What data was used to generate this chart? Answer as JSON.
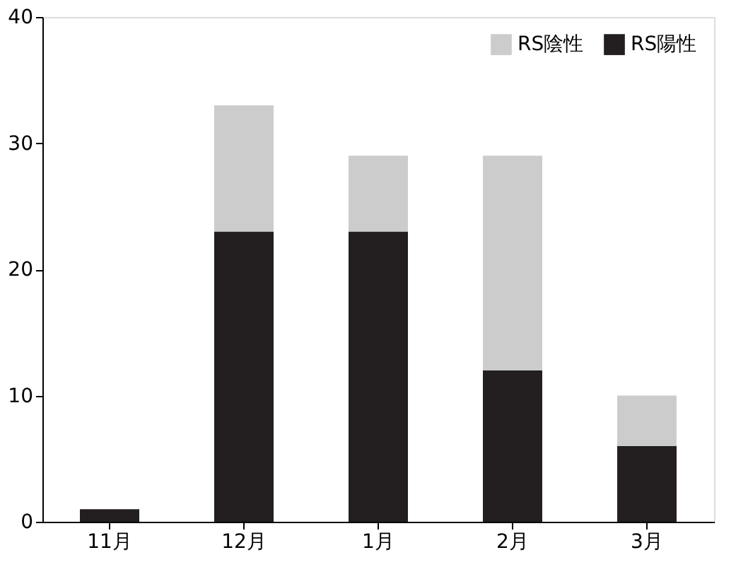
{
  "chart_data": {
    "type": "bar",
    "stacked": true,
    "categories": [
      "11月",
      "12月",
      "1月",
      "2月",
      "3月"
    ],
    "series": [
      {
        "name": "RS陽性",
        "color": "#231f20",
        "values": [
          1,
          23,
          23,
          12,
          6
        ]
      },
      {
        "name": "RS陰性",
        "color": "#cccccc",
        "values": [
          0,
          10,
          6,
          17,
          4
        ]
      }
    ],
    "ylim": [
      0,
      40
    ],
    "yticks": [
      0,
      10,
      20,
      30,
      40
    ],
    "grid": false,
    "legend": "top right"
  }
}
